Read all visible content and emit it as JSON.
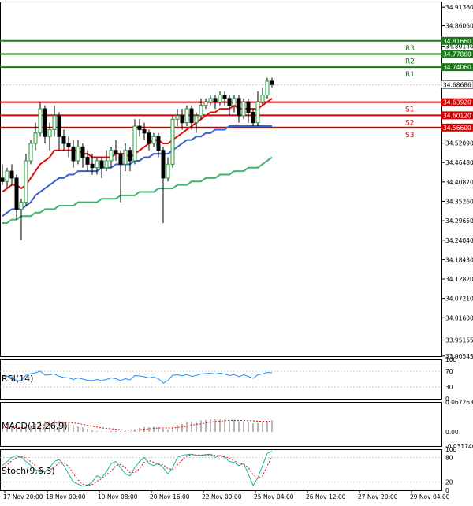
{
  "chart_data": {
    "type": "candlestick",
    "main": {
      "y_ticks": [
        "34.91360",
        "34.86060",
        "34.80140",
        "34.74060",
        "34.68686",
        "34.63920",
        "34.60120",
        "34.56600",
        "34.52090",
        "34.46480",
        "34.40870",
        "34.35260",
        "34.29650",
        "34.24040",
        "34.18430",
        "34.12820",
        "34.07210",
        "34.01600",
        "33.95155",
        "33.90545"
      ],
      "ylim": [
        33.905,
        34.93
      ],
      "x_ticks": [
        "17 Nov 20:00",
        "18 Nov 00:00",
        "19 Nov 08:00",
        "20 Nov 16:00",
        "22 Nov 00:00",
        "25 Nov 04:00",
        "26 Nov 12:00",
        "27 Nov 20:00",
        "29 Nov 04:00"
      ],
      "x_tick_positions": [
        0,
        9,
        20,
        31,
        42,
        53,
        64,
        75,
        86
      ],
      "last_price": "34.68686",
      "levels": [
        {
          "name": "R3",
          "value": 34.8166,
          "value_label": "34.81660",
          "kind": "resistance"
        },
        {
          "name": "R2",
          "value": 34.7786,
          "value_label": "34.77860",
          "kind": "resistance"
        },
        {
          "name": "R1",
          "value": 34.7406,
          "value_label": "34.74060",
          "kind": "resistance"
        },
        {
          "name": "S1",
          "value": 34.6392,
          "value_label": "34.63920",
          "kind": "support"
        },
        {
          "name": "S2",
          "value": 34.6012,
          "value_label": "34.60120",
          "kind": "support"
        },
        {
          "name": "S3",
          "value": 34.566,
          "value_label": "34.56600",
          "kind": "support"
        }
      ],
      "candles": [
        [
          34.42,
          34.41,
          34.46,
          34.4
        ],
        [
          34.41,
          34.44,
          34.45,
          34.39
        ],
        [
          34.44,
          34.42,
          34.46,
          34.4
        ],
        [
          34.42,
          34.33,
          34.43,
          34.3
        ],
        [
          34.33,
          34.35,
          34.36,
          34.24
        ],
        [
          34.35,
          34.47,
          34.49,
          34.34
        ],
        [
          34.47,
          34.52,
          34.53,
          34.46
        ],
        [
          34.52,
          34.55,
          34.58,
          34.5
        ],
        [
          34.55,
          34.62,
          34.64,
          34.54
        ],
        [
          34.62,
          34.54,
          34.63,
          34.52
        ],
        [
          34.54,
          34.56,
          34.58,
          34.5
        ],
        [
          34.56,
          34.6,
          34.63,
          34.54
        ],
        [
          34.6,
          34.54,
          34.61,
          34.5
        ],
        [
          34.54,
          34.52,
          34.56,
          34.5
        ],
        [
          34.52,
          34.51,
          34.54,
          34.48
        ],
        [
          34.51,
          34.47,
          34.53,
          34.45
        ],
        [
          34.47,
          34.51,
          34.53,
          34.46
        ],
        [
          34.51,
          34.48,
          34.52,
          34.45
        ],
        [
          34.48,
          34.46,
          34.5,
          34.44
        ],
        [
          34.46,
          34.45,
          34.49,
          34.43
        ],
        [
          34.45,
          34.47,
          34.48,
          34.43
        ],
        [
          34.47,
          34.45,
          34.48,
          34.42
        ],
        [
          34.45,
          34.47,
          34.5,
          34.44
        ],
        [
          34.47,
          34.5,
          34.51,
          34.45
        ],
        [
          34.5,
          34.49,
          34.53,
          34.47
        ],
        [
          34.49,
          34.46,
          34.5,
          34.35
        ],
        [
          34.46,
          34.5,
          34.52,
          34.44
        ],
        [
          34.5,
          34.47,
          34.51,
          34.44
        ],
        [
          34.47,
          34.57,
          34.59,
          34.46
        ],
        [
          34.57,
          34.56,
          34.59,
          34.54
        ],
        [
          34.56,
          34.55,
          34.58,
          34.53
        ],
        [
          34.55,
          34.52,
          34.56,
          34.5
        ],
        [
          34.52,
          34.54,
          34.55,
          34.51
        ],
        [
          34.54,
          34.5,
          34.55,
          34.48
        ],
        [
          34.5,
          34.42,
          34.51,
          34.29
        ],
        [
          34.42,
          34.46,
          34.48,
          34.41
        ],
        [
          34.46,
          34.59,
          34.6,
          34.45
        ],
        [
          34.59,
          34.6,
          34.62,
          34.57
        ],
        [
          34.6,
          34.58,
          34.62,
          34.56
        ],
        [
          34.58,
          34.62,
          34.63,
          34.57
        ],
        [
          34.62,
          34.58,
          34.63,
          34.56
        ],
        [
          34.58,
          34.6,
          34.61,
          34.55
        ],
        [
          34.6,
          34.63,
          34.65,
          34.59
        ],
        [
          34.63,
          34.64,
          34.65,
          34.62
        ],
        [
          34.64,
          34.65,
          34.66,
          34.63
        ],
        [
          34.65,
          34.64,
          34.66,
          34.62
        ],
        [
          34.64,
          34.66,
          34.67,
          34.63
        ],
        [
          34.66,
          34.65,
          34.67,
          34.63
        ],
        [
          34.65,
          34.63,
          34.66,
          34.6
        ],
        [
          34.63,
          34.65,
          34.66,
          34.61
        ],
        [
          34.65,
          34.6,
          34.66,
          34.58
        ],
        [
          34.6,
          34.64,
          34.65,
          34.59
        ],
        [
          34.64,
          34.61,
          34.65,
          34.58
        ],
        [
          34.61,
          34.58,
          34.62,
          34.57
        ],
        [
          34.58,
          34.64,
          34.67,
          34.57
        ],
        [
          34.64,
          34.66,
          34.68,
          34.63
        ],
        [
          34.66,
          34.7,
          34.71,
          34.65
        ],
        [
          34.7,
          34.69,
          34.71,
          34.68
        ]
      ],
      "ma_fast": [
        34.38,
        34.39,
        34.4,
        34.4,
        34.39,
        34.4,
        34.42,
        34.44,
        34.46,
        34.47,
        34.48,
        34.5,
        34.5,
        34.5,
        34.5,
        34.5,
        34.5,
        34.49,
        34.49,
        34.48,
        34.48,
        34.48,
        34.48,
        34.48,
        34.49,
        34.49,
        34.49,
        34.48,
        34.49,
        34.5,
        34.51,
        34.52,
        34.53,
        34.53,
        34.52,
        34.52,
        34.53,
        34.54,
        34.55,
        34.56,
        34.57,
        34.58,
        34.59,
        34.6,
        34.61,
        34.61,
        34.62,
        34.62,
        34.62,
        34.63,
        34.62,
        34.62,
        34.62,
        34.62,
        34.62,
        34.63,
        34.64,
        34.65
      ],
      "ma_mid": [
        34.31,
        34.32,
        34.33,
        34.33,
        34.33,
        34.34,
        34.35,
        34.37,
        34.38,
        34.39,
        34.4,
        34.41,
        34.42,
        34.42,
        34.43,
        34.43,
        34.44,
        34.44,
        34.44,
        34.44,
        34.44,
        34.45,
        34.45,
        34.45,
        34.46,
        34.46,
        34.46,
        34.46,
        34.47,
        34.47,
        34.48,
        34.48,
        34.49,
        34.49,
        34.49,
        34.49,
        34.5,
        34.51,
        34.52,
        34.53,
        34.53,
        34.54,
        34.54,
        34.55,
        34.55,
        34.56,
        34.56,
        34.56,
        34.57,
        34.57,
        34.57,
        34.57,
        34.57,
        34.57,
        34.57,
        34.57,
        34.57,
        34.57
      ],
      "ma_slow": [
        34.29,
        34.29,
        34.3,
        34.3,
        34.31,
        34.31,
        34.31,
        34.32,
        34.32,
        34.33,
        34.33,
        34.33,
        34.34,
        34.34,
        34.34,
        34.34,
        34.35,
        34.35,
        34.35,
        34.35,
        34.35,
        34.36,
        34.36,
        34.36,
        34.36,
        34.37,
        34.37,
        34.37,
        34.37,
        34.38,
        34.38,
        34.38,
        34.38,
        34.39,
        34.39,
        34.39,
        34.39,
        34.4,
        34.4,
        34.4,
        34.41,
        34.41,
        34.41,
        34.42,
        34.42,
        34.42,
        34.43,
        34.43,
        34.43,
        34.44,
        34.44,
        34.44,
        34.45,
        34.45,
        34.45,
        34.46,
        34.47,
        34.48
      ]
    },
    "rsi": {
      "label": "RSI(14)",
      "y_ticks": [
        "100",
        "70",
        "30",
        "0"
      ],
      "values": [
        56,
        58,
        55,
        45,
        47,
        60,
        64,
        66,
        70,
        60,
        61,
        63,
        57,
        54,
        53,
        49,
        53,
        50,
        47,
        46,
        49,
        46,
        49,
        53,
        51,
        46,
        51,
        48,
        59,
        58,
        56,
        53,
        55,
        51,
        40,
        46,
        60,
        61,
        58,
        62,
        57,
        59,
        63,
        64,
        65,
        63,
        65,
        63,
        59,
        62,
        56,
        61,
        57,
        52,
        61,
        63,
        67,
        66
      ]
    },
    "macd": {
      "label": "MACD(12,26,9)",
      "y_ticks": [
        "0.067263",
        "0.00",
        "-0.031746"
      ],
      "ylim": [
        -0.031746,
        0.067263
      ],
      "histogram": [
        0.008,
        0.01,
        0.011,
        0.01,
        0.008,
        0.01,
        0.014,
        0.018,
        0.024,
        0.024,
        0.025,
        0.027,
        0.025,
        0.022,
        0.019,
        0.015,
        0.013,
        0.01,
        0.007,
        0.004,
        0.002,
        0.001,
        0.001,
        0.002,
        0.002,
        0.001,
        0.002,
        0.001,
        0.006,
        0.009,
        0.011,
        0.011,
        0.012,
        0.011,
        0.007,
        0.006,
        0.011,
        0.016,
        0.018,
        0.022,
        0.023,
        0.024,
        0.026,
        0.027,
        0.028,
        0.028,
        0.028,
        0.028,
        0.027,
        0.027,
        0.024,
        0.024,
        0.022,
        0.019,
        0.02,
        0.021,
        0.024,
        0.026
      ],
      "signal": [
        0.01,
        0.01,
        0.01,
        0.01,
        0.01,
        0.01,
        0.011,
        0.012,
        0.014,
        0.016,
        0.018,
        0.02,
        0.021,
        0.021,
        0.021,
        0.02,
        0.019,
        0.017,
        0.015,
        0.013,
        0.011,
        0.009,
        0.008,
        0.007,
        0.006,
        0.005,
        0.004,
        0.004,
        0.004,
        0.005,
        0.006,
        0.007,
        0.008,
        0.009,
        0.009,
        0.009,
        0.009,
        0.01,
        0.011,
        0.013,
        0.015,
        0.017,
        0.018,
        0.02,
        0.022,
        0.023,
        0.024,
        0.025,
        0.026,
        0.026,
        0.026,
        0.026,
        0.025,
        0.025,
        0.024,
        0.024,
        0.024,
        0.024
      ]
    },
    "stoch": {
      "label": "Stoch(9,6,3)",
      "y_ticks": [
        "100",
        "80",
        "20",
        "0"
      ],
      "main": [
        60,
        70,
        80,
        85,
        80,
        70,
        60,
        50,
        45,
        45,
        55,
        70,
        75,
        60,
        40,
        20,
        15,
        10,
        12,
        20,
        35,
        30,
        45,
        65,
        70,
        55,
        40,
        35,
        55,
        70,
        80,
        65,
        60,
        65,
        55,
        40,
        55,
        80,
        85,
        87,
        88,
        85,
        85,
        87,
        88,
        80,
        85,
        80,
        70,
        68,
        60,
        65,
        40,
        12,
        30,
        60,
        90,
        95
      ],
      "signal": [
        55,
        62,
        72,
        80,
        82,
        78,
        70,
        60,
        52,
        47,
        48,
        57,
        67,
        68,
        58,
        40,
        25,
        15,
        12,
        14,
        22,
        28,
        37,
        47,
        60,
        63,
        55,
        43,
        43,
        53,
        68,
        72,
        68,
        63,
        62,
        53,
        50,
        62,
        73,
        84,
        87,
        86,
        86,
        86,
        87,
        85,
        84,
        82,
        78,
        72,
        66,
        64,
        55,
        38,
        28,
        35,
        60,
        82
      ]
    }
  }
}
